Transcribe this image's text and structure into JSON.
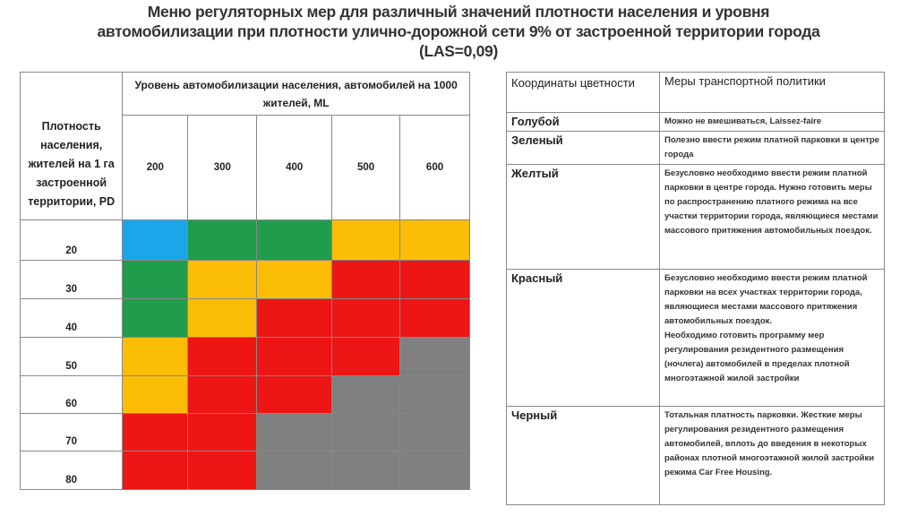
{
  "title": [
    "Меню регуляторных мер  для различный значений плотности населения и уровня",
    "автомобилизации при плотности улично-дорожной сети 9%   от застроенной территории города",
    "(LAS=0,09)"
  ],
  "grid": {
    "row_header": "Плотность населения, жителей на 1 га застроенной территории, PD",
    "col_header": "Уровень автомобилизации населения, автомобилей на 1000 жителей, ML",
    "columns": [
      "200",
      "300",
      "400",
      "500",
      "600"
    ],
    "rows": [
      {
        "pd": "20",
        "colors": [
          "blue",
          "green",
          "green",
          "yellow",
          "yellow"
        ]
      },
      {
        "pd": "30",
        "colors": [
          "green",
          "yellow",
          "yellow",
          "red",
          "red"
        ]
      },
      {
        "pd": "40",
        "colors": [
          "green",
          "yellow",
          "red",
          "red",
          "red"
        ]
      },
      {
        "pd": "50",
        "colors": [
          "yellow",
          "red",
          "red",
          "red",
          "gray"
        ]
      },
      {
        "pd": "60",
        "colors": [
          "yellow",
          "red",
          "red",
          "gray",
          "gray"
        ]
      },
      {
        "pd": "70",
        "colors": [
          "red",
          "red",
          "gray",
          "gray",
          "gray"
        ]
      },
      {
        "pd": "80",
        "colors": [
          "red",
          "red",
          "gray",
          "gray",
          "gray"
        ]
      }
    ],
    "palette": {
      "blue": "#1aa6e8",
      "green": "#1f9d4c",
      "yellow": "#fbbd05",
      "red": "#ee1515",
      "gray": "#808080"
    }
  },
  "legend": {
    "headers": [
      "Координаты цветности",
      "Меры транспортной политики"
    ],
    "rows": [
      {
        "name": "Голубой",
        "desc": "Можно не вмешиваться, Laissez-faire"
      },
      {
        "name": "Зеленый",
        "desc": "Полезно ввести режим платной парковки в центре города"
      },
      {
        "name": "Желтый",
        "desc": "Безусловно необходимо ввести  режим платной парковки в центре города. Нужно готовить меры по распространению платного режима на все участки территории города, являющиеся местами массового притяжения автомобильных поездок."
      },
      {
        "name": "Красный",
        "desc": "Безусловно необходимо ввести  режим платной парковки на  всех участках территории города, являющиеся местами массового притяжения автомобильных поездок.",
        "desc2": "Необходимо готовить программу мер регулирования резидентного размещения (ночлега) автомобилей в пределах плотной многоэтажной жилой застройки"
      },
      {
        "name": "Черный",
        "desc": "Тотальная платность парковки. Жесткие меры регулирования резидентного размещения автомобилей, вплоть до введения в некоторых районах плотной многоэтажной жилой застройки режима Car Free Housing."
      }
    ]
  }
}
